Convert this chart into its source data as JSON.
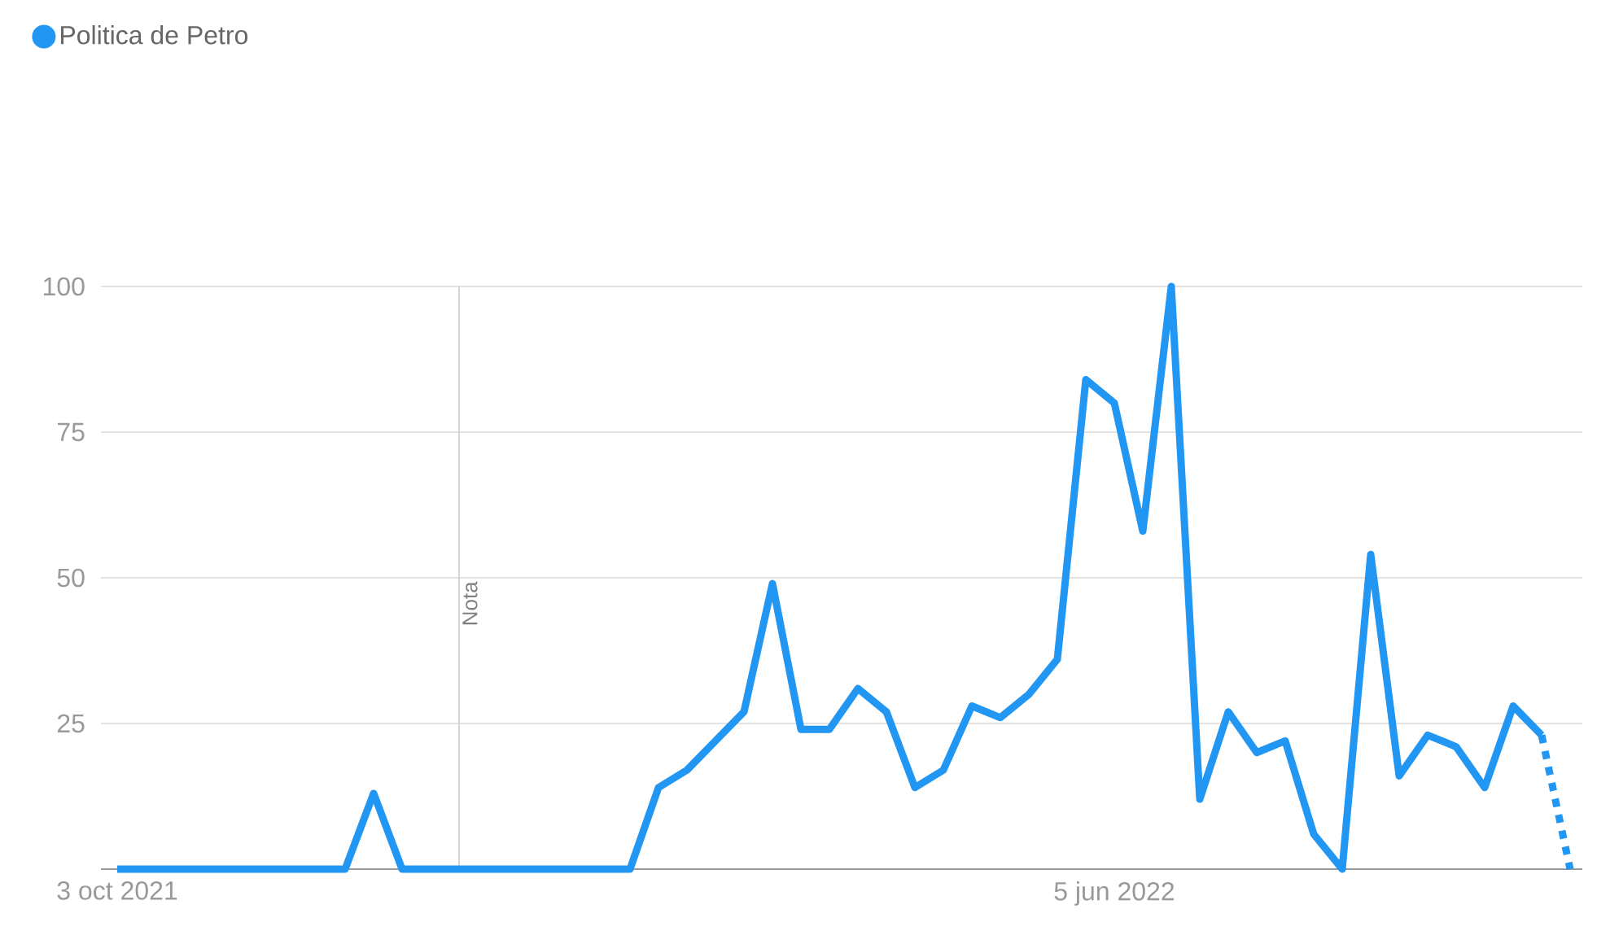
{
  "chart_data": {
    "type": "line",
    "x": [
      "2021-10-03",
      "2021-10-10",
      "2021-10-17",
      "2021-10-24",
      "2021-10-31",
      "2021-11-07",
      "2021-11-14",
      "2021-11-21",
      "2021-11-28",
      "2021-12-05",
      "2021-12-12",
      "2021-12-19",
      "2021-12-26",
      "2022-01-02",
      "2022-01-09",
      "2022-01-16",
      "2022-01-23",
      "2022-01-30",
      "2022-02-06",
      "2022-02-13",
      "2022-02-20",
      "2022-02-27",
      "2022-03-06",
      "2022-03-13",
      "2022-03-20",
      "2022-03-27",
      "2022-04-03",
      "2022-04-10",
      "2022-04-17",
      "2022-04-24",
      "2022-05-01",
      "2022-05-08",
      "2022-05-15",
      "2022-05-22",
      "2022-05-29",
      "2022-06-05",
      "2022-06-12",
      "2022-06-19",
      "2022-06-26",
      "2022-07-03",
      "2022-07-10",
      "2022-07-17",
      "2022-07-24",
      "2022-07-31",
      "2022-08-07",
      "2022-08-14",
      "2022-08-21",
      "2022-08-28",
      "2022-09-04",
      "2022-09-11",
      "2022-09-18",
      "2022-09-25"
    ],
    "series": [
      {
        "name": "Politica de Petro",
        "color": "#2196f3",
        "line_style": "solid",
        "values": [
          0,
          0,
          0,
          0,
          0,
          0,
          0,
          0,
          0,
          13,
          0,
          0,
          0,
          0,
          0,
          0,
          0,
          0,
          0,
          14,
          17,
          22,
          27,
          49,
          24,
          24,
          31,
          27,
          14,
          17,
          28,
          26,
          30,
          36,
          84,
          80,
          58,
          100,
          12,
          27,
          20,
          22,
          6,
          0,
          54,
          16,
          23,
          21,
          14,
          28,
          23,
          null
        ]
      },
      {
        "color": "#2196f3",
        "line_style": "dotted",
        "values": [
          null,
          null,
          null,
          null,
          null,
          null,
          null,
          null,
          null,
          null,
          null,
          null,
          null,
          null,
          null,
          null,
          null,
          null,
          null,
          null,
          null,
          null,
          null,
          null,
          null,
          null,
          null,
          null,
          null,
          null,
          null,
          null,
          null,
          null,
          null,
          null,
          null,
          null,
          null,
          null,
          null,
          null,
          null,
          null,
          null,
          null,
          null,
          null,
          null,
          null,
          23,
          0
        ]
      }
    ],
    "xlim": [
      "2021-09-29",
      "2022-09-28"
    ],
    "xticks": [
      {
        "value": "2021-10-03",
        "label": "3 oct 2021"
      },
      {
        "value": "2022-06-05",
        "label": "5 jun 2022"
      }
    ],
    "ylim": [
      0,
      100
    ],
    "yticks": [
      25,
      50,
      75,
      100
    ],
    "grid": "y",
    "marker": "none",
    "legend": "top left",
    "ref_lines": [
      {
        "axis": "x",
        "value": "2021-12-26",
        "label": "Nota"
      }
    ]
  }
}
